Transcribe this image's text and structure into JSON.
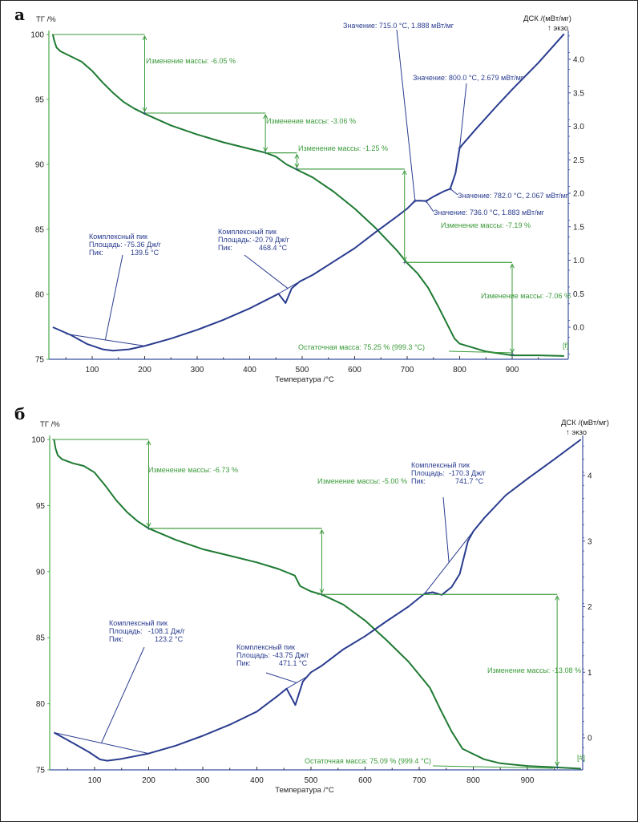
{
  "panels": [
    {
      "letter": "а"
    },
    {
      "letter": "б"
    }
  ],
  "colors": {
    "tg": "#1e7a32",
    "tg_annot": "#3a9a3a",
    "dsc": "#2a3c8f",
    "dsc_axis": "#3b4fa0",
    "tg_axis": "#4caa4c"
  },
  "chart_data": [
    {
      "id": "a",
      "type": "line",
      "title": "",
      "xlabel": "Температура /°C",
      "ylabel_left": "ТГ /%",
      "ylabel_right": "ДСК /(мВт/мг)",
      "exo_label": "↑ экзо",
      "xlim": [
        25,
        1000
      ],
      "ylim_left": [
        75,
        100
      ],
      "ylim_right": [
        -0.4,
        4.4
      ],
      "x_ticks": [
        "100",
        "200",
        "300",
        "400",
        "500",
        "600",
        "700",
        "800",
        "900"
      ],
      "y_ticks_left": [
        "100",
        "95",
        "90",
        "85",
        "80",
        "75"
      ],
      "y_ticks_right": [
        "4.0",
        "3.5",
        "3.0",
        "2.5",
        "2.0",
        "1.5",
        "1.0",
        "0.5",
        "0.0"
      ],
      "series": [
        {
          "name": "ТГ",
          "axis": "left",
          "x": [
            25,
            28,
            32,
            40,
            60,
            80,
            100,
            120,
            140,
            160,
            180,
            200,
            250,
            300,
            350,
            400,
            430,
            450,
            470,
            490,
            520,
            560,
            600,
            640,
            680,
            700,
            720,
            740,
            760,
            780,
            790,
            800,
            850,
            900,
            950,
            999
          ],
          "y": [
            100,
            99.5,
            99.0,
            98.7,
            98.3,
            97.9,
            97.2,
            96.3,
            95.5,
            94.8,
            94.3,
            93.9,
            93.0,
            92.3,
            91.7,
            91.2,
            90.9,
            90.6,
            90.0,
            89.6,
            89.0,
            87.9,
            86.6,
            85.1,
            83.4,
            82.4,
            81.6,
            80.5,
            79.0,
            77.4,
            76.6,
            76.2,
            75.6,
            75.3,
            75.3,
            75.25
          ]
        },
        {
          "name": "ДСК",
          "axis": "right",
          "x": [
            25,
            60,
            90,
            120,
            139.5,
            170,
            200,
            250,
            300,
            350,
            400,
            440,
            455,
            468.4,
            480,
            495,
            520,
            560,
            600,
            640,
            680,
            700,
            715,
            725,
            736,
            750,
            770,
            782,
            792,
            800,
            830,
            870,
            900,
            950,
            999
          ],
          "y": [
            0.0,
            -0.12,
            -0.25,
            -0.33,
            -0.35,
            -0.33,
            -0.28,
            -0.17,
            -0.04,
            0.11,
            0.28,
            0.44,
            0.5,
            0.36,
            0.58,
            0.68,
            0.78,
            0.98,
            1.18,
            1.42,
            1.65,
            1.77,
            1.888,
            1.89,
            1.883,
            1.95,
            2.03,
            2.067,
            2.3,
            2.679,
            2.95,
            3.3,
            3.55,
            3.95,
            4.38
          ]
        }
      ],
      "annotations": [
        {
          "kind": "mass_change",
          "text": "Изменение массы: -6.05 %",
          "from": 100,
          "to": 93.95,
          "x": 200
        },
        {
          "kind": "mass_change",
          "text": "Изменение массы: -3.06 %",
          "from": 93.95,
          "to": 90.89,
          "x": 430
        },
        {
          "kind": "mass_change",
          "text": "Изменение массы: -1.25 %",
          "from": 90.89,
          "to": 89.64,
          "x": 490
        },
        {
          "kind": "mass_change",
          "text": "Изменение массы: -7.19 %",
          "from": 89.64,
          "to": 82.45,
          "x": 695
        },
        {
          "kind": "mass_change",
          "text": "Изменение массы: -7.06 %",
          "from": 82.45,
          "to": 75.39,
          "x": 900
        },
        {
          "kind": "residual",
          "text": "Остаточная масса: 75.25 % (999.3 °C)"
        },
        {
          "kind": "value",
          "text": "Значение: 715.0 °C, 1.888 мВт/мг"
        },
        {
          "kind": "value",
          "text": "Значение: 800.0 °C, 2.679 мВт/мг"
        },
        {
          "kind": "value",
          "text": "Значение: 782.0 °C, 2.067 мВт/мг"
        },
        {
          "kind": "value",
          "text": "Значение: 736.0 °C, 1.883 мВт/мг"
        },
        {
          "kind": "peak",
          "lines": [
            "Комплексный пик",
            "Площадь:",
            "-75.36 Дж/г",
            "Пик:",
            "139.5 °C"
          ]
        },
        {
          "kind": "peak",
          "lines": [
            "Комплексный пик",
            "Площадь:",
            "-20.79 Дж/г",
            "Пик:",
            "468.4 °C"
          ]
        }
      ],
      "end_marker": "[f]"
    },
    {
      "id": "b",
      "type": "line",
      "title": "",
      "xlabel": "Температура /°C",
      "ylabel_left": "ТГ /%",
      "ylabel_right": "ДСК /(мВт/мг)",
      "exo_label": "↑ экзо",
      "xlim": [
        25,
        1000
      ],
      "ylim_left": [
        75,
        100
      ],
      "ylim_right": [
        -0.35,
        4.6
      ],
      "x_ticks": [
        "100",
        "200",
        "300",
        "400",
        "500",
        "600",
        "700",
        "800",
        "900"
      ],
      "y_ticks_left": [
        "100",
        "95",
        "90",
        "85",
        "80",
        "75"
      ],
      "y_ticks_right": [
        "4",
        "3",
        "2",
        "1",
        "0"
      ],
      "series": [
        {
          "name": "ТГ",
          "axis": "left",
          "x": [
            25,
            28,
            32,
            40,
            60,
            80,
            100,
            120,
            140,
            160,
            180,
            200,
            250,
            300,
            350,
            400,
            440,
            470,
            480,
            500,
            520,
            560,
            600,
            640,
            680,
            720,
            740,
            760,
            780,
            795,
            820,
            850,
            900,
            950,
            999
          ],
          "y": [
            100,
            99.3,
            98.8,
            98.5,
            98.2,
            98.0,
            97.5,
            96.5,
            95.4,
            94.5,
            93.8,
            93.27,
            92.4,
            91.7,
            91.2,
            90.7,
            90.2,
            89.7,
            88.9,
            88.5,
            88.27,
            87.5,
            86.3,
            84.8,
            83.2,
            81.2,
            79.5,
            77.9,
            76.6,
            76.3,
            75.8,
            75.5,
            75.3,
            75.2,
            75.09
          ]
        },
        {
          "name": "ДСК",
          "axis": "right",
          "x": [
            25,
            60,
            90,
            110,
            123.2,
            150,
            200,
            250,
            300,
            350,
            400,
            440,
            455,
            471.1,
            485,
            500,
            520,
            560,
            600,
            640,
            680,
            710,
            725,
            741.7,
            760,
            775,
            790,
            800,
            820,
            860,
            900,
            950,
            999
          ],
          "y": [
            0.08,
            -0.08,
            -0.22,
            -0.33,
            -0.35,
            -0.32,
            -0.24,
            -0.12,
            0.03,
            0.2,
            0.4,
            0.65,
            0.75,
            0.5,
            0.86,
            1.0,
            1.1,
            1.35,
            1.55,
            1.78,
            2.0,
            2.2,
            2.22,
            2.18,
            2.3,
            2.5,
            3.0,
            3.15,
            3.35,
            3.7,
            3.95,
            4.25,
            4.55
          ]
        }
      ],
      "annotations": [
        {
          "kind": "mass_change",
          "text": "Изменение массы: -6.73 %",
          "from": 100,
          "to": 93.27,
          "x": 200
        },
        {
          "kind": "mass_change",
          "text": "Изменение массы: -5.00 %",
          "from": 93.27,
          "to": 88.27,
          "x": 520
        },
        {
          "kind": "mass_change",
          "text": "Изменение массы: -13.08 %",
          "from": 88.27,
          "to": 75.19,
          "x": 955
        },
        {
          "kind": "residual",
          "text": "Остаточная масса: 75.09 % (999.4 °C)"
        },
        {
          "kind": "peak",
          "lines": [
            "Комплексный пик",
            "Площадь:",
            "-108.1 Дж/г",
            "Пик:",
            "123.2 °C"
          ]
        },
        {
          "kind": "peak",
          "lines": [
            "Комплексный пик",
            "Площадь:",
            "-43.75 Дж/г",
            "Пик:",
            "471.1 °C"
          ]
        },
        {
          "kind": "peak",
          "lines": [
            "Комплексный пик",
            "Площадь:",
            "-170.3 Дж/г",
            "Пик:",
            "741.7 °C"
          ]
        }
      ],
      "end_marker": "[#]"
    }
  ]
}
